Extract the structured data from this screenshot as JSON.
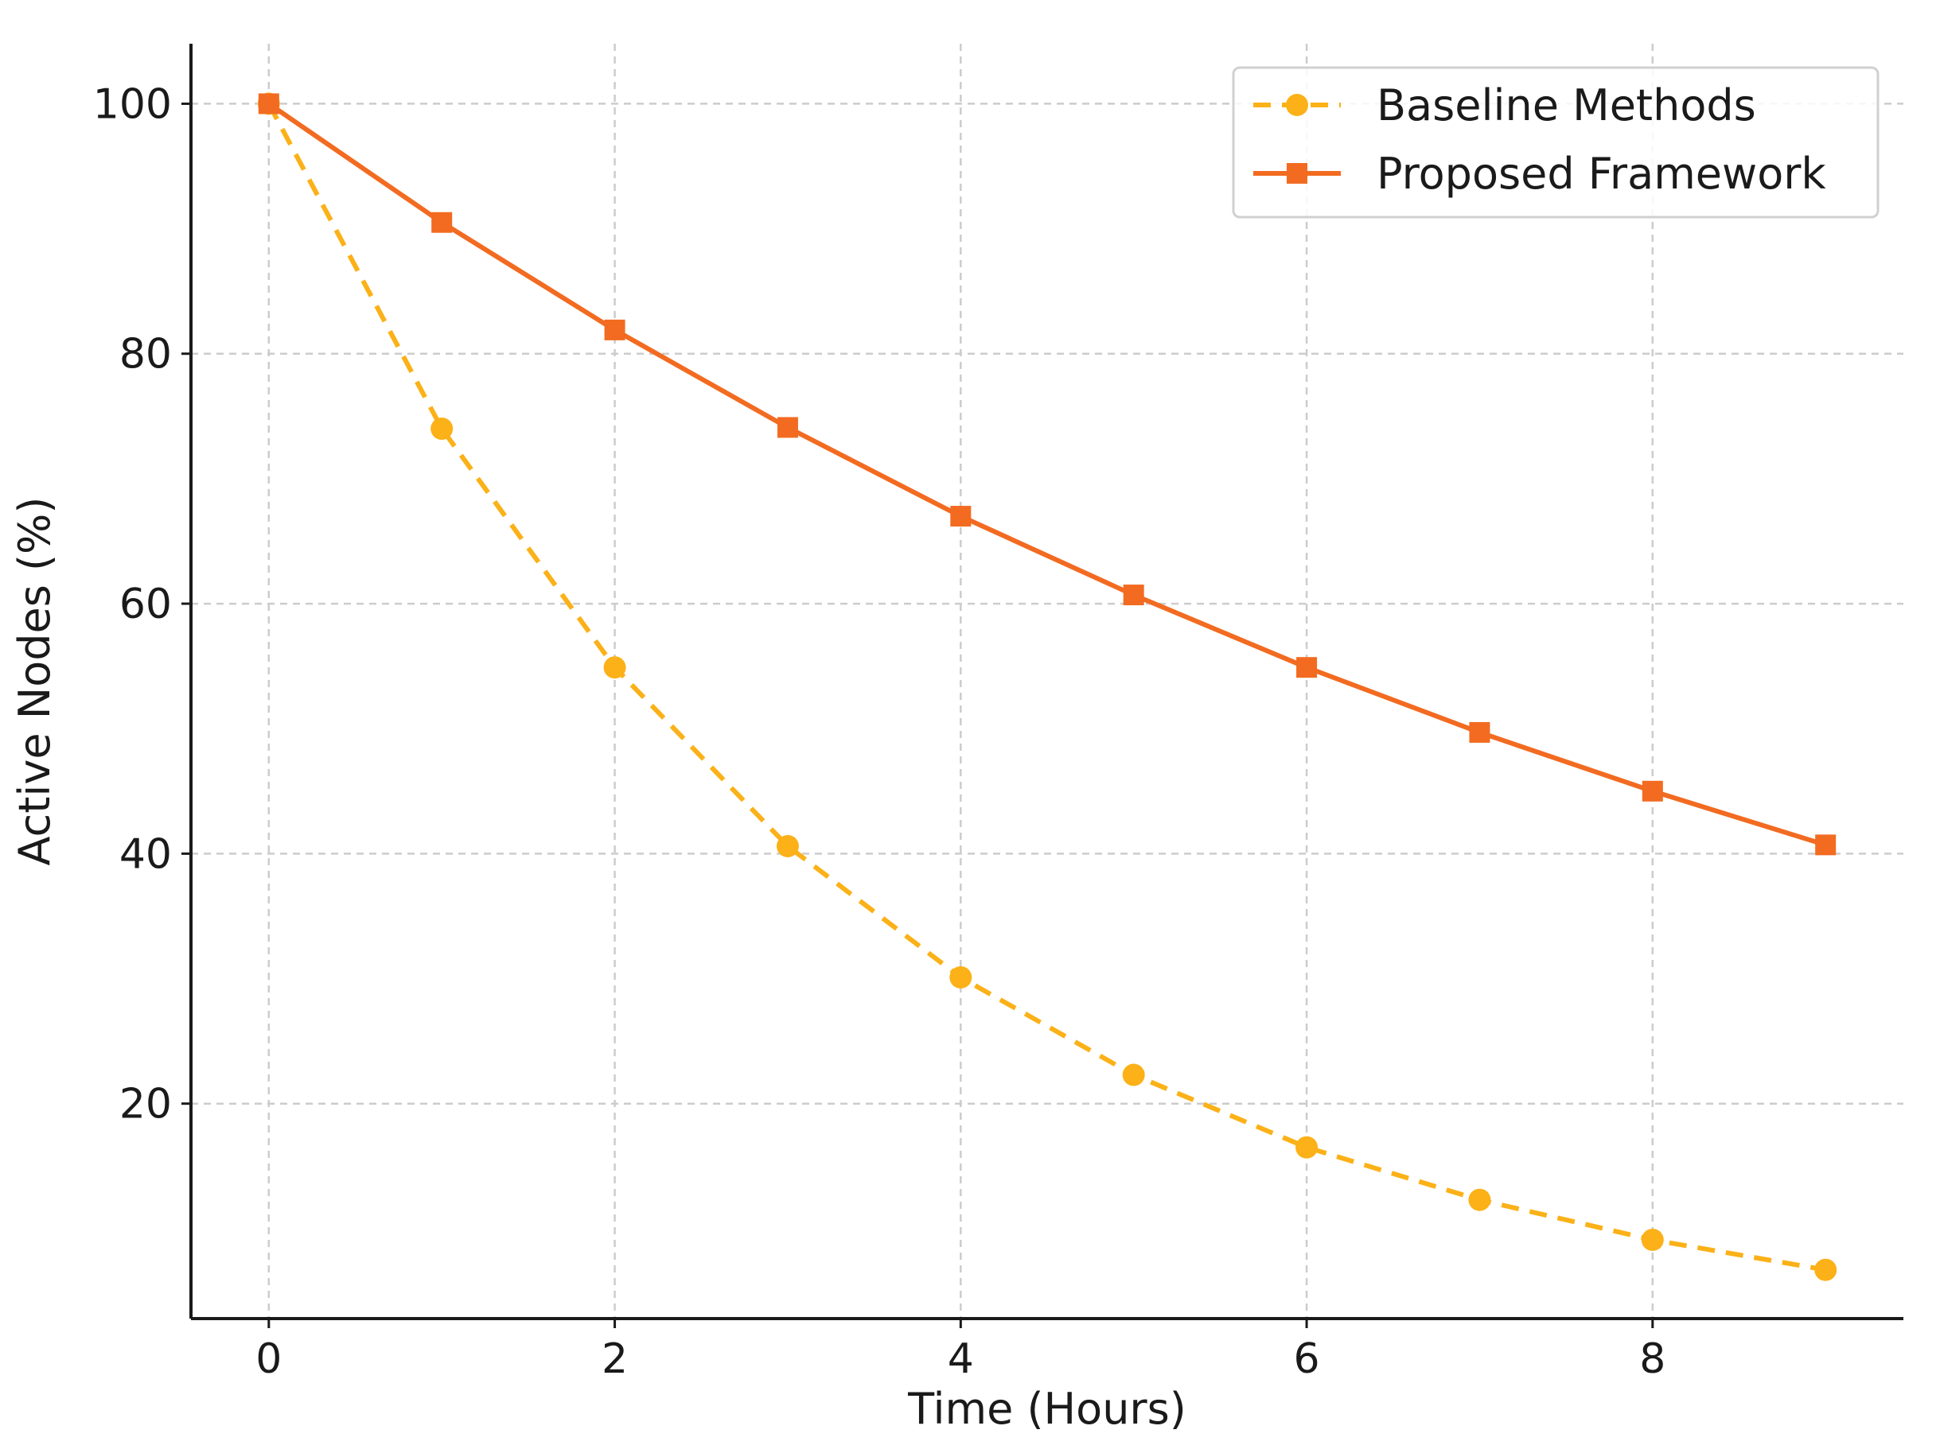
{
  "chart_data": {
    "type": "line",
    "title": "",
    "xlabel": "Time (Hours)",
    "ylabel": "Active Nodes (%)",
    "x": [
      0,
      1,
      2,
      3,
      4,
      5,
      6,
      7,
      8,
      9
    ],
    "xlim": [
      -0.45,
      9.45
    ],
    "ylim": [
      2.8,
      104.8
    ],
    "xticks": [
      0,
      2,
      4,
      6,
      8
    ],
    "yticks": [
      20,
      40,
      60,
      80,
      100
    ],
    "xtick_labels": [
      "0",
      "2",
      "4",
      "6",
      "8"
    ],
    "ytick_labels": [
      "20",
      "40",
      "60",
      "80",
      "100"
    ],
    "grid": true,
    "legend_position": "top-right",
    "series": [
      {
        "name": "Baseline Methods",
        "color": "#FBB117",
        "line_style": "dashed",
        "marker": "circle",
        "values": [
          100,
          74,
          54.9,
          40.6,
          30.1,
          22.3,
          16.5,
          12.3,
          9.1,
          6.7
        ]
      },
      {
        "name": "Proposed Framework",
        "color": "#F26B21",
        "line_style": "solid",
        "marker": "square",
        "values": [
          100,
          90.5,
          81.9,
          74.1,
          67,
          60.7,
          54.9,
          49.7,
          45,
          40.7
        ]
      }
    ]
  }
}
